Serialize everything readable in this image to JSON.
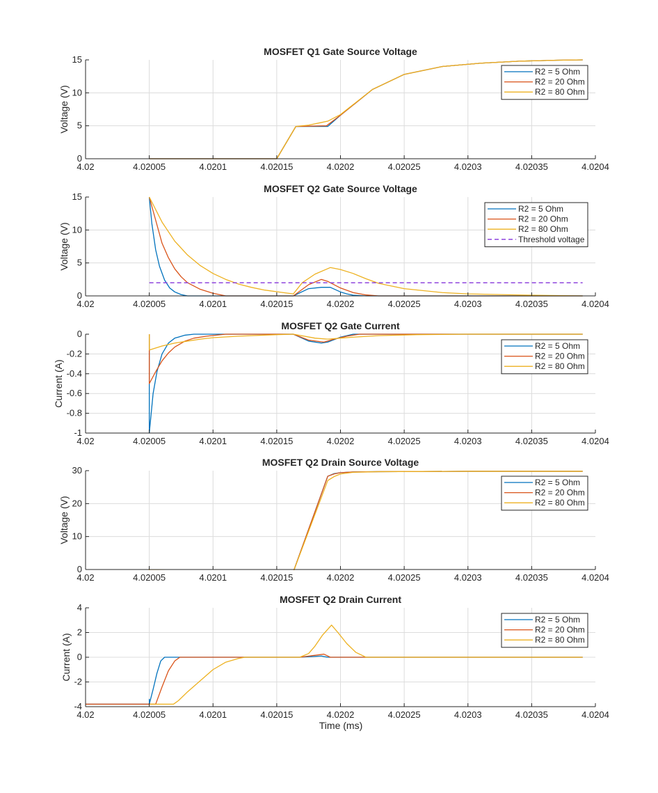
{
  "figure": {
    "xlabel": "Time (ms)",
    "colors": {
      "grid": "#dcdcdc",
      "axis": "#262626",
      "text": "#262626",
      "background": "#ffffff"
    }
  },
  "chart_data": [
    {
      "type": "line",
      "title": "MOSFET Q1 Gate Source Voltage",
      "xlabel": "",
      "ylabel": "Voltage (V)",
      "xlim": [
        4.02,
        4.0204
      ],
      "ylim": [
        0,
        15
      ],
      "xticks": [
        4.02,
        4.02005,
        4.0201,
        4.02015,
        4.0202,
        4.02025,
        4.0203,
        4.02035,
        4.0204
      ],
      "xticklabels": [
        "4.02",
        "4.02005",
        "4.0201",
        "4.02015",
        "4.0202",
        "4.02025",
        "4.0203",
        "4.02035",
        "4.0204"
      ],
      "yticks": [
        0,
        5,
        10,
        15
      ],
      "yticklabels": [
        "0",
        "5",
        "10",
        "15"
      ],
      "grid": true,
      "legend": "top-right",
      "series": [
        {
          "name": "R2 = 5 Ohm",
          "color": "#0072BD",
          "dash": "solid",
          "x": [
            4.02005,
            4.02015,
            4.020165,
            4.02019,
            4.0202,
            4.020225,
            4.02025,
            4.02028,
            4.02031,
            4.02034,
            4.02037,
            4.02039
          ],
          "y": [
            0,
            0,
            4.9,
            4.9,
            6.6,
            10.5,
            12.8,
            14.0,
            14.5,
            14.8,
            14.95,
            15
          ]
        },
        {
          "name": "R2 = 20 Ohm",
          "color": "#D95319",
          "dash": "solid",
          "x": [
            4.02005,
            4.02015,
            4.020165,
            4.020189,
            4.0202,
            4.020225,
            4.02025,
            4.02028,
            4.02031,
            4.02034,
            4.02037,
            4.02039
          ],
          "y": [
            0,
            0,
            4.9,
            5.0,
            6.6,
            10.5,
            12.8,
            14.0,
            14.5,
            14.8,
            14.95,
            15
          ]
        },
        {
          "name": "R2 = 80 Ohm",
          "color": "#EDB120",
          "dash": "solid",
          "x": [
            4.02005,
            4.02015,
            4.020165,
            4.020175,
            4.020185,
            4.02019,
            4.0202,
            4.020225,
            4.02025,
            4.02028,
            4.02031,
            4.02034,
            4.02037,
            4.02039
          ],
          "y": [
            0,
            0,
            4.9,
            5.1,
            5.5,
            5.7,
            6.7,
            10.5,
            12.8,
            14.0,
            14.5,
            14.8,
            14.95,
            15
          ]
        }
      ]
    },
    {
      "type": "line",
      "title": "MOSFET Q2 Gate Source Voltage",
      "xlabel": "",
      "ylabel": "Voltage (V)",
      "xlim": [
        4.02,
        4.0204
      ],
      "ylim": [
        0,
        15
      ],
      "xticks": [
        4.02,
        4.02005,
        4.0201,
        4.02015,
        4.0202,
        4.02025,
        4.0203,
        4.02035,
        4.0204
      ],
      "xticklabels": [
        "4.02",
        "4.02005",
        "4.0201",
        "4.02015",
        "4.0202",
        "4.02025",
        "4.0203",
        "4.02035",
        "4.0204"
      ],
      "yticks": [
        0,
        5,
        10,
        15
      ],
      "yticklabels": [
        "0",
        "5",
        "10",
        "15"
      ],
      "grid": true,
      "legend": "top-right",
      "series": [
        {
          "name": "R2 = 5 Ohm",
          "color": "#0072BD",
          "dash": "solid",
          "x": [
            4.02005,
            4.020052,
            4.020055,
            4.020058,
            4.020062,
            4.020066,
            4.02007,
            4.020075,
            4.02008,
            4.020163,
            4.020175,
            4.020185,
            4.020192,
            4.0202,
            4.020205,
            4.02021,
            4.02022,
            4.0203,
            4.02039
          ],
          "y": [
            15,
            11.0,
            7.0,
            4.5,
            2.4,
            1.2,
            0.6,
            0.2,
            0,
            0,
            1.1,
            1.3,
            1.3,
            0.6,
            0.3,
            0.1,
            0,
            0,
            0
          ]
        },
        {
          "name": "R2 = 20 Ohm",
          "color": "#D95319",
          "dash": "solid",
          "x": [
            4.02005,
            4.020055,
            4.02006,
            4.020065,
            4.02007,
            4.020075,
            4.02008,
            4.02009,
            4.0201,
            4.02011,
            4.020163,
            4.020175,
            4.020185,
            4.02019,
            4.0202,
            4.02021,
            4.02022,
            4.02023,
            4.0203,
            4.02039
          ],
          "y": [
            15,
            11.5,
            8.0,
            5.8,
            4.1,
            2.9,
            2.0,
            1.0,
            0.4,
            0,
            0,
            1.7,
            2.5,
            2.2,
            1.2,
            0.5,
            0.15,
            0,
            0,
            0
          ]
        },
        {
          "name": "R2 = 80 Ohm",
          "color": "#EDB120",
          "dash": "solid",
          "x": [
            4.02005,
            4.02006,
            4.02007,
            4.02008,
            4.02009,
            4.0201,
            4.02011,
            4.02012,
            4.02013,
            4.02014,
            4.020155,
            4.020163,
            4.02017,
            4.02018,
            4.020192,
            4.0202,
            4.02021,
            4.02022,
            4.02023,
            4.02025,
            4.02028,
            4.0203,
            4.02035,
            4.02039
          ],
          "y": [
            15,
            11.2,
            8.3,
            6.2,
            4.6,
            3.4,
            2.5,
            1.8,
            1.3,
            0.9,
            0.5,
            0.3,
            2.0,
            3.3,
            4.3,
            4.0,
            3.4,
            2.6,
            1.9,
            1.1,
            0.5,
            0.3,
            0.1,
            0
          ]
        },
        {
          "name": "Threshold voltage",
          "color": "#8E44DD",
          "dash": "dashed",
          "x": [
            4.02005,
            4.02039
          ],
          "y": [
            2,
            2
          ]
        }
      ]
    },
    {
      "type": "line",
      "title": "MOSFET Q2 Gate Current",
      "xlabel": "",
      "ylabel": "Current (A)",
      "xlim": [
        4.02,
        4.0204
      ],
      "ylim": [
        -1,
        0
      ],
      "xticks": [
        4.02,
        4.02005,
        4.0201,
        4.02015,
        4.0202,
        4.02025,
        4.0203,
        4.02035,
        4.0204
      ],
      "xticklabels": [
        "4.02",
        "4.02005",
        "4.0201",
        "4.02015",
        "4.0202",
        "4.02025",
        "4.0203",
        "4.02035",
        "4.0204"
      ],
      "yticks": [
        -1,
        -0.8,
        -0.6,
        -0.4,
        -0.2,
        0
      ],
      "yticklabels": [
        "-1",
        "-0.8",
        "-0.6",
        "-0.4",
        "-0.2",
        "0"
      ],
      "grid": true,
      "legend": "top-right",
      "series": [
        {
          "name": "R2 = 5 Ohm",
          "color": "#0072BD",
          "dash": "solid",
          "x": [
            4.02005,
            4.02005,
            4.020053,
            4.020056,
            4.02006,
            4.020065,
            4.02007,
            4.020078,
            4.020085,
            4.020163,
            4.020175,
            4.020185,
            4.02019,
            4.0202,
            4.02021,
            4.02039
          ],
          "y": [
            0,
            -1.0,
            -0.6,
            -0.38,
            -0.2,
            -0.09,
            -0.04,
            -0.01,
            0,
            0,
            -0.07,
            -0.09,
            -0.08,
            -0.03,
            0,
            0
          ]
        },
        {
          "name": "R2 = 20 Ohm",
          "color": "#D95319",
          "dash": "solid",
          "x": [
            4.02005,
            4.02005,
            4.020055,
            4.02006,
            4.020065,
            4.02007,
            4.020078,
            4.020085,
            4.020095,
            4.02011,
            4.020163,
            4.020175,
            4.020187,
            4.020195,
            4.020205,
            4.020215,
            4.02039
          ],
          "y": [
            0,
            -0.5,
            -0.38,
            -0.27,
            -0.19,
            -0.13,
            -0.07,
            -0.04,
            -0.02,
            0,
            0,
            -0.06,
            -0.08,
            -0.05,
            -0.02,
            0,
            0
          ]
        },
        {
          "name": "R2 = 80 Ohm",
          "color": "#EDB120",
          "dash": "solid",
          "x": [
            4.02005,
            4.02005,
            4.02006,
            4.02007,
            4.02008,
            4.02009,
            4.0201,
            4.02012,
            4.02015,
            4.020163,
            4.02018,
            4.02019,
            4.0202,
            4.02021,
            4.02023,
            4.02026,
            4.0203,
            4.02039
          ],
          "y": [
            0,
            -0.16,
            -0.12,
            -0.09,
            -0.07,
            -0.05,
            -0.035,
            -0.02,
            -0.005,
            0,
            -0.04,
            -0.05,
            -0.04,
            -0.03,
            -0.015,
            -0.005,
            0,
            0
          ]
        }
      ]
    },
    {
      "type": "line",
      "title": "MOSFET Q2 Drain Source Voltage",
      "xlabel": "",
      "ylabel": "Voltage (V)",
      "xlim": [
        4.02,
        4.0204
      ],
      "ylim": [
        0,
        30
      ],
      "xticks": [
        4.02,
        4.02005,
        4.0201,
        4.02015,
        4.0202,
        4.02025,
        4.0203,
        4.02035,
        4.0204
      ],
      "xticklabels": [
        "4.02",
        "4.02005",
        "4.0201",
        "4.02015",
        "4.0202",
        "4.02025",
        "4.0203",
        "4.02035",
        "4.0204"
      ],
      "yticks": [
        0,
        10,
        20,
        30
      ],
      "yticklabels": [
        "0",
        "10",
        "20",
        "30"
      ],
      "grid": true,
      "legend": "top-right",
      "series": [
        {
          "name": "R2 = 5 Ohm",
          "color": "#0072BD",
          "dash": "solid",
          "x": [
            4.02,
            4.020163,
            4.02019,
            4.020195,
            4.0202,
            4.02021,
            4.02023,
            4.0203,
            4.02039
          ],
          "y": [
            -0.7,
            -0.7,
            28.3,
            29.1,
            29.4,
            29.6,
            29.7,
            29.8,
            29.8
          ]
        },
        {
          "name": "R2 = 20 Ohm",
          "color": "#D95319",
          "dash": "solid",
          "x": [
            4.02,
            4.020163,
            4.02019,
            4.020195,
            4.0202,
            4.02021,
            4.02023,
            4.0203,
            4.02039
          ],
          "y": [
            -0.7,
            -0.7,
            28.3,
            29.0,
            29.4,
            29.6,
            29.7,
            29.8,
            29.8
          ]
        },
        {
          "name": "R2 = 80 Ohm",
          "color": "#EDB120",
          "dash": "solid",
          "x": [
            4.02005,
            4.02005,
            4.020163,
            4.02019,
            4.020195,
            4.0202,
            4.02021,
            4.02023,
            4.0203,
            4.02039
          ],
          "y": [
            0,
            -0.3,
            -0.7,
            27.0,
            28.2,
            29.0,
            29.5,
            29.7,
            29.8,
            29.8
          ]
        }
      ]
    },
    {
      "type": "line",
      "title": "MOSFET Q2 Drain Current",
      "xlabel": "Time (ms)",
      "ylabel": "Current (A)",
      "xlim": [
        4.02,
        4.0204
      ],
      "ylim": [
        -4,
        4
      ],
      "xticks": [
        4.02,
        4.02005,
        4.0201,
        4.02015,
        4.0202,
        4.02025,
        4.0203,
        4.02035,
        4.0204
      ],
      "xticklabels": [
        "4.02",
        "4.02005",
        "4.0201",
        "4.02015",
        "4.0202",
        "4.02025",
        "4.0203",
        "4.02035",
        "4.0204"
      ],
      "yticks": [
        -4,
        -2,
        0,
        2,
        4
      ],
      "yticklabels": [
        "-4",
        "-2",
        "0",
        "2",
        "4"
      ],
      "grid": true,
      "legend": "top-right",
      "series": [
        {
          "name": "R2 = 5 Ohm",
          "color": "#0072BD",
          "dash": "solid",
          "x": [
            4.02,
            4.02005,
            4.02005,
            4.02005,
            4.020053,
            4.020056,
            4.020059,
            4.020062,
            4.020168,
            4.020185,
            4.02019,
            4.0202,
            4.02039
          ],
          "y": [
            -3.8,
            -3.8,
            -3.4,
            -3.8,
            -2.6,
            -1.3,
            -0.3,
            0,
            0,
            0.1,
            0,
            0,
            0
          ]
        },
        {
          "name": "R2 = 20 Ohm",
          "color": "#D95319",
          "dash": "solid",
          "x": [
            4.02,
            4.020055,
            4.02006,
            4.020065,
            4.02007,
            4.020074,
            4.020168,
            4.020187,
            4.020192,
            4.0202,
            4.02039
          ],
          "y": [
            -3.8,
            -3.8,
            -2.4,
            -1.1,
            -0.3,
            0,
            0,
            0.25,
            0,
            0,
            0
          ]
        },
        {
          "name": "R2 = 80 Ohm",
          "color": "#EDB120",
          "dash": "solid",
          "x": [
            4.02005,
            4.02005,
            4.020054,
            4.020069,
            4.020073,
            4.02008,
            4.02009,
            4.0201,
            4.02011,
            4.02012,
            4.020125,
            4.020168,
            4.020175,
            4.02018,
            4.020186,
            4.020193,
            4.020198,
            4.020205,
            4.020212,
            4.02022,
            4.02039
          ],
          "y": [
            -3.8,
            -3.8,
            -3.8,
            -3.8,
            -3.5,
            -2.8,
            -1.9,
            -1.0,
            -0.4,
            -0.1,
            0,
            0,
            0.3,
            0.9,
            1.8,
            2.6,
            2.0,
            1.1,
            0.4,
            0,
            0
          ]
        }
      ]
    }
  ]
}
